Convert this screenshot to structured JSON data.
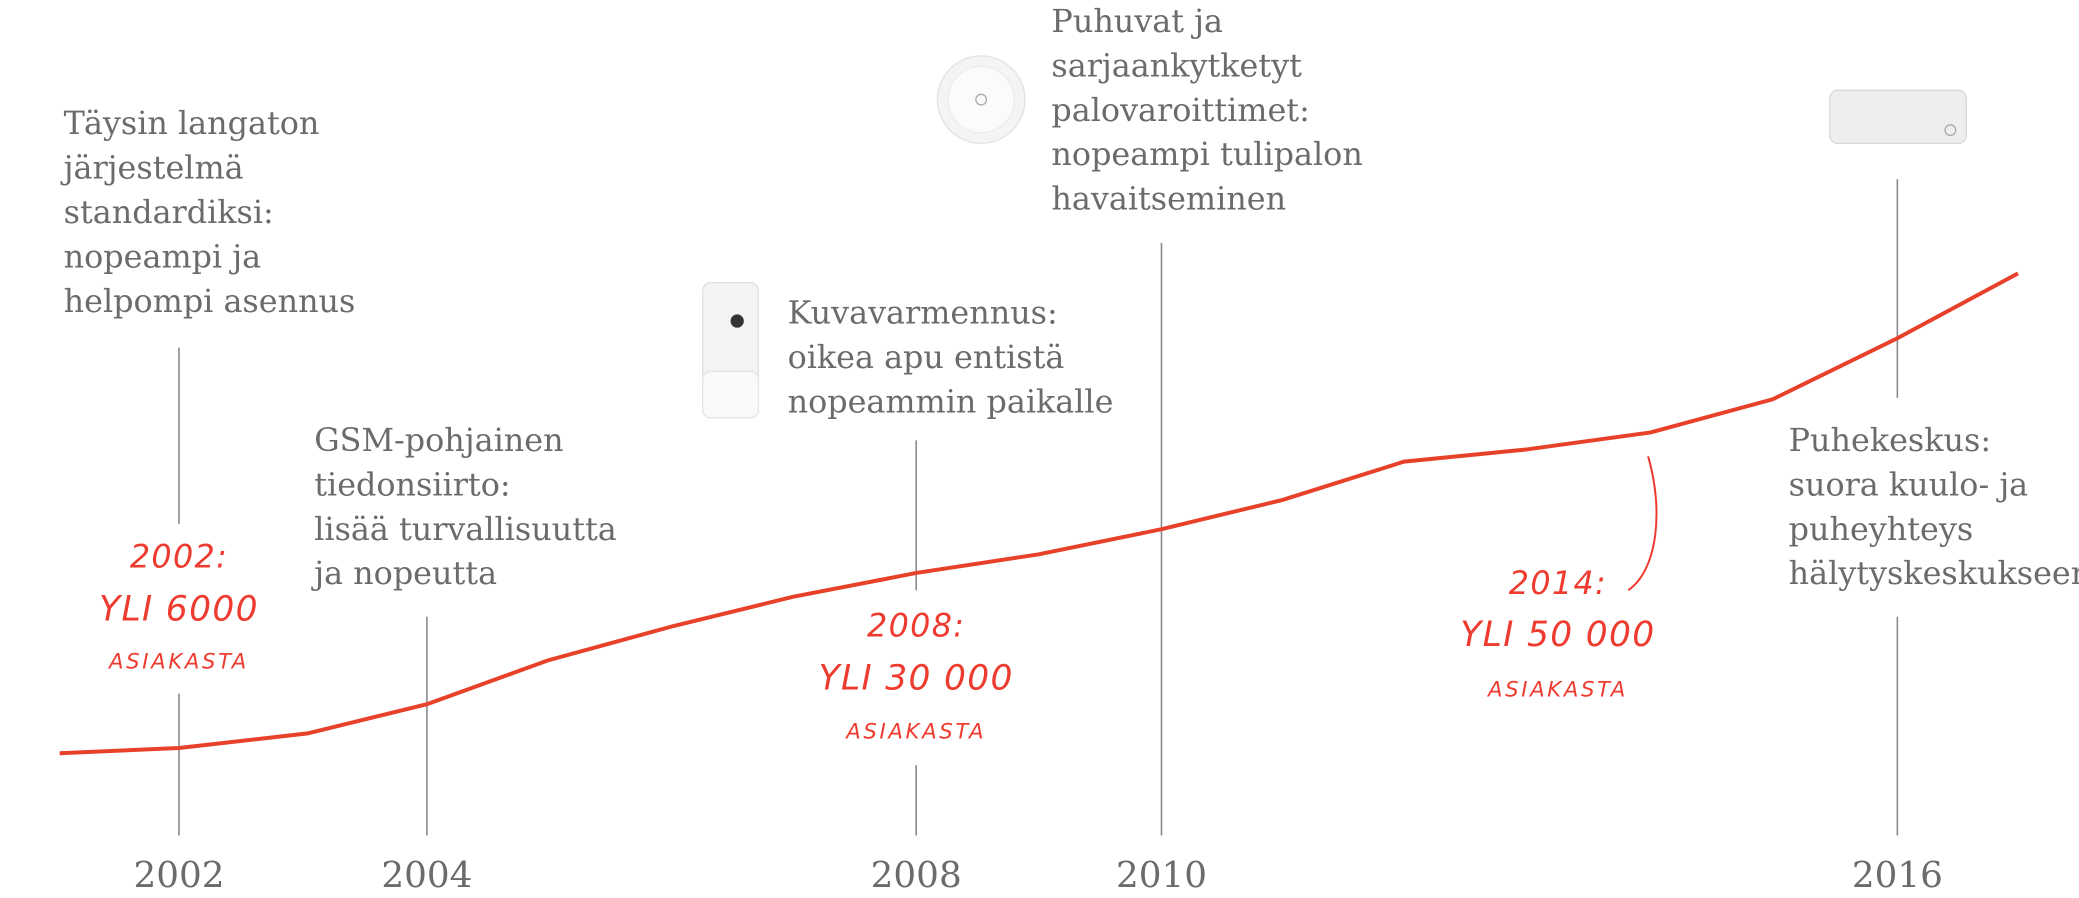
{
  "years": [
    "2002",
    "2004",
    "2008",
    "2010",
    "2016"
  ],
  "milestones": [
    {
      "lines": [
        "Täysin langaton",
        "järjestelmä",
        "standardiksi:",
        "nopeampi ja",
        "helpompi asennus"
      ]
    },
    {
      "lines": [
        "GSM-pohjainen",
        "tiedonsiirto:",
        "lisää turvallisuutta",
        "ja nopeutta"
      ]
    },
    {
      "lines": [
        "Kuvavarmennus:",
        "oikea apu entistä",
        "nopeammin paikalle"
      ]
    },
    {
      "lines": [
        "Puhuvat ja",
        "sarjaankytketyt",
        "palovaroittimet:",
        "nopeampi tulipalon",
        "havaitseminen"
      ]
    },
    {
      "lines": [
        "Puhekeskus:",
        "suora kuulo- ja",
        "puheyhteys",
        "hälytyskeskukseen"
      ]
    }
  ],
  "annotations": [
    {
      "lines": [
        "2002:",
        "YLI 6000",
        "ASIAKASTA"
      ]
    },
    {
      "lines": [
        "2008:",
        "YLI 30 000",
        "ASIAKASTA"
      ]
    },
    {
      "lines": [
        "2014:",
        "YLI 50 000",
        "ASIAKASTA"
      ]
    }
  ]
}
